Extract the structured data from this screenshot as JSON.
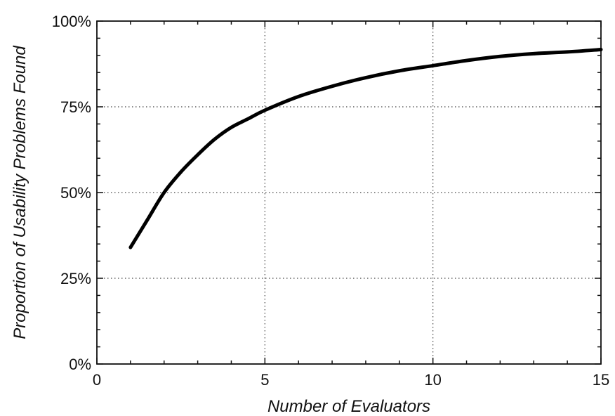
{
  "chart_data": {
    "type": "line",
    "xlabel": "Number of Evaluators",
    "ylabel": "Proportion of Usability Problems Found",
    "xlim": [
      0,
      15
    ],
    "ylim": [
      0,
      100
    ],
    "x_ticks": [
      {
        "value": 0,
        "label": "0"
      },
      {
        "value": 5,
        "label": "5"
      },
      {
        "value": 10,
        "label": "10"
      },
      {
        "value": 15,
        "label": "15"
      }
    ],
    "y_ticks": [
      {
        "value": 0,
        "label": "0%"
      },
      {
        "value": 25,
        "label": "25%"
      },
      {
        "value": 50,
        "label": "50%"
      },
      {
        "value": 75,
        "label": "75%"
      },
      {
        "value": 100,
        "label": "100%"
      }
    ],
    "x_minor_step": 1,
    "y_minor_step": 5,
    "grid": true,
    "x": [
      1,
      1.5,
      2,
      2.5,
      3,
      3.5,
      4,
      4.5,
      5,
      6,
      7,
      8,
      9,
      10,
      11,
      12,
      13,
      14,
      15
    ],
    "series": [
      {
        "values": [
          34,
          42,
          50,
          56,
          61,
          65.5,
          69,
          71.5,
          74,
          78,
          81,
          83.5,
          85.5,
          87,
          88.5,
          89.7,
          90.5,
          91,
          91.7
        ]
      }
    ],
    "colors": {
      "line": "#000000",
      "grid": "#444444",
      "frame": "#111111"
    }
  }
}
